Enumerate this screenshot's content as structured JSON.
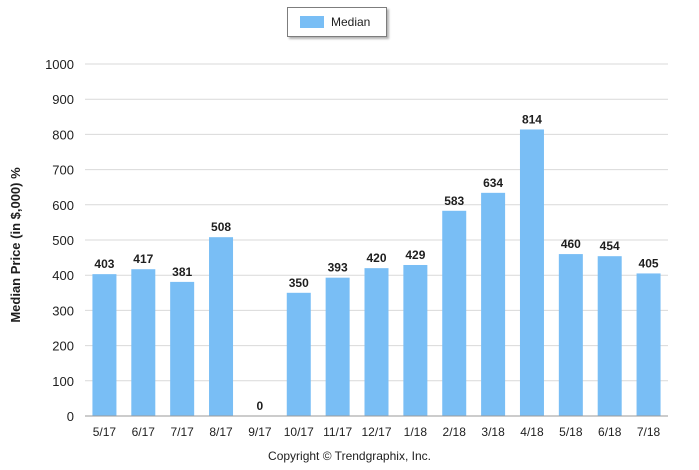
{
  "chart_data": {
    "type": "bar",
    "categories": [
      "5/17",
      "6/17",
      "7/17",
      "8/17",
      "9/17",
      "10/17",
      "11/17",
      "12/17",
      "1/18",
      "2/18",
      "3/18",
      "4/18",
      "5/18",
      "6/18",
      "7/18"
    ],
    "series": [
      {
        "name": "Median",
        "values": [
          403,
          417,
          381,
          508,
          0,
          350,
          393,
          420,
          429,
          583,
          634,
          814,
          460,
          454,
          405
        ]
      }
    ],
    "ylabel": "Median Price (in $,000) %",
    "xlabel": "",
    "ylim": [
      0,
      1000
    ],
    "yticks": [
      0,
      100,
      200,
      300,
      400,
      500,
      600,
      700,
      800,
      900,
      1000
    ],
    "data_labels": true,
    "grid": true,
    "legend_position": "top",
    "bar_color": "#79bef5"
  },
  "footer": {
    "copyright": "Copyright © Trendgraphix, Inc."
  }
}
